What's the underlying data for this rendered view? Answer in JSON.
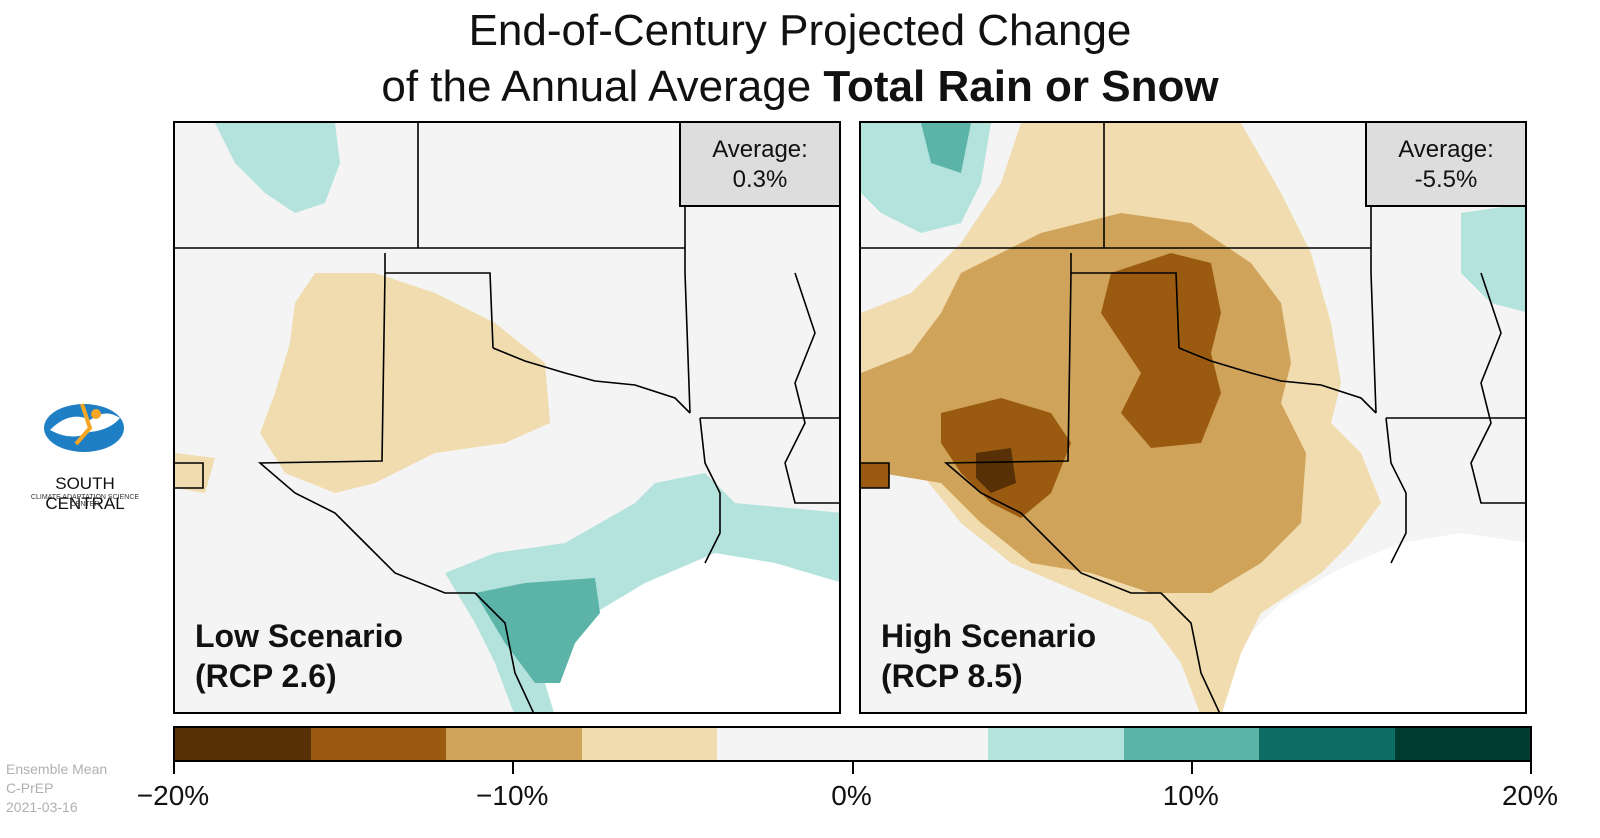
{
  "title": {
    "line1": "End-of-Century Projected Change",
    "line2_prefix": "of the Annual Average",
    "line2_bold": "Total Rain or Snow"
  },
  "panels": {
    "low": {
      "average_label": "Average:",
      "average_value": "0.3%",
      "scenario_name": "Low Scenario",
      "scenario_code": "(RCP 2.6)"
    },
    "high": {
      "average_label": "Average:",
      "average_value": "-5.5%",
      "scenario_name": "High Scenario",
      "scenario_code": "(RCP 8.5)"
    }
  },
  "logo": {
    "name": "SOUTH CENTRAL",
    "subtitle": "CLIMATE ADAPTATION SCIENCE CENTER"
  },
  "footer": {
    "line1": "Ensemble Mean",
    "line2": "C-PrEP",
    "line3": "2021-03-16"
  },
  "legend": {
    "colors": [
      "#543005",
      "#8c510a",
      "#bf812d",
      "#dfc27d",
      "#f5f5f5",
      "#f5f5f5",
      "#80cdc1",
      "#35978f",
      "#01665e",
      "#003c30"
    ],
    "display_colors": [
      "#583005",
      "#9a5b11",
      "#cfa35a",
      "#f0dcae",
      "#f4f4f4",
      "#f4f4f4",
      "#b4e3dd",
      "#5cb3a8",
      "#0c6e65",
      "#013c33"
    ],
    "tick_labels": [
      "−20%",
      "−10%",
      "0%",
      "10%",
      "20%"
    ]
  },
  "colors": {
    "dry_light": "#f0dcae",
    "dry_mid": "#d0a35a",
    "dry_dark": "#9a5b11",
    "dry_darkest": "#583005",
    "wet_light": "#b4e3dd",
    "wet_mid": "#5cb3a8",
    "neutral": "#f4f4f4"
  }
}
